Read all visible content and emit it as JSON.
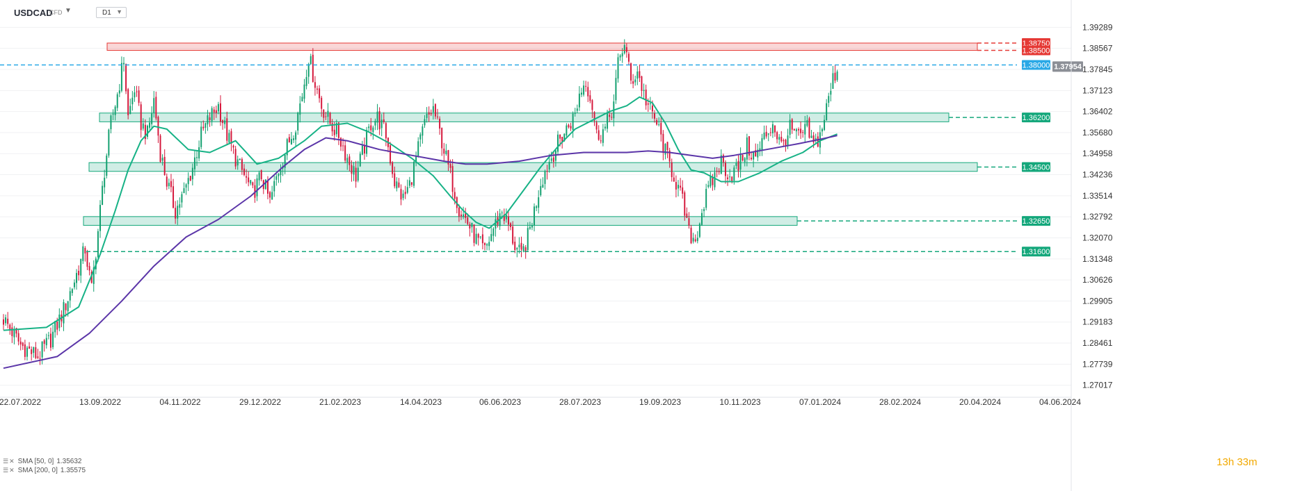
{
  "header": {
    "symbol": "USDCAD",
    "instrument_type": "CFD",
    "timeframe": "D1"
  },
  "chart_data": {
    "type": "candlestick",
    "y_ticks": [
      "1.39289",
      "1.38567",
      "1.37845",
      "1.37123",
      "1.36402",
      "1.35680",
      "1.34958",
      "1.34236",
      "1.33514",
      "1.32792",
      "1.32070",
      "1.31348",
      "1.30626",
      "1.29905",
      "1.29183",
      "1.28461",
      "1.27739",
      "1.27017"
    ],
    "x_ticks": [
      "22.07.2022",
      "13.09.2022",
      "04.11.2022",
      "29.12.2022",
      "21.02.2023",
      "14.04.2023",
      "06.06.2023",
      "28.07.2023",
      "19.09.2023",
      "10.11.2023",
      "07.01.2024",
      "28.02.2024",
      "20.04.2024",
      "04.06.2024"
    ],
    "ylim": [
      1.267,
      1.3975
    ],
    "current_price": "1.37954",
    "levels": [
      {
        "value": "1.38750",
        "color": "#e53935",
        "style": "dashed",
        "zone": true
      },
      {
        "value": "1.38500",
        "color": "#e53935",
        "style": "dashed",
        "zone": true
      },
      {
        "value": "1.38000",
        "color": "#29a8e6",
        "style": "dashed",
        "zone": false
      },
      {
        "value": "1.36200",
        "color": "#14a77b",
        "style": "dashed",
        "zone": true
      },
      {
        "value": "1.34500",
        "color": "#14a77b",
        "style": "dashed",
        "zone": true
      },
      {
        "value": "1.32650",
        "color": "#14a77b",
        "style": "dashed",
        "zone": true
      },
      {
        "value": "1.31600",
        "color": "#14a77b",
        "style": "dashed",
        "zone": false
      }
    ],
    "price_path": [
      [
        0,
        1.293
      ],
      [
        8,
        1.284
      ],
      [
        16,
        1.28
      ],
      [
        22,
        1.286
      ],
      [
        28,
        1.296
      ],
      [
        33,
        1.306
      ],
      [
        38,
        1.317
      ],
      [
        41,
        1.303
      ],
      [
        44,
        1.323
      ],
      [
        47,
        1.344
      ],
      [
        50,
        1.36
      ],
      [
        53,
        1.37
      ],
      [
        56,
        1.382
      ],
      [
        58,
        1.362
      ],
      [
        61,
        1.372
      ],
      [
        64,
        1.36
      ],
      [
        67,
        1.356
      ],
      [
        70,
        1.368
      ],
      [
        73,
        1.35
      ],
      [
        76,
        1.34
      ],
      [
        80,
        1.33
      ],
      [
        84,
        1.336
      ],
      [
        88,
        1.345
      ],
      [
        92,
        1.356
      ],
      [
        96,
        1.362
      ],
      [
        100,
        1.366
      ],
      [
        104,
        1.356
      ],
      [
        108,
        1.348
      ],
      [
        112,
        1.342
      ],
      [
        116,
        1.336
      ],
      [
        120,
        1.342
      ],
      [
        124,
        1.333
      ],
      [
        128,
        1.344
      ],
      [
        132,
        1.352
      ],
      [
        136,
        1.36
      ],
      [
        139,
        1.37
      ],
      [
        142,
        1.383
      ],
      [
        145,
        1.374
      ],
      [
        148,
        1.366
      ],
      [
        152,
        1.36
      ],
      [
        156,
        1.356
      ],
      [
        160,
        1.348
      ],
      [
        164,
        1.342
      ],
      [
        168,
        1.352
      ],
      [
        171,
        1.36
      ],
      [
        174,
        1.362
      ],
      [
        178,
        1.356
      ],
      [
        182,
        1.34
      ],
      [
        186,
        1.334
      ],
      [
        189,
        1.339
      ],
      [
        192,
        1.348
      ],
      [
        196,
        1.36
      ],
      [
        200,
        1.365
      ],
      [
        204,
        1.354
      ],
      [
        208,
        1.342
      ],
      [
        212,
        1.331
      ],
      [
        216,
        1.326
      ],
      [
        220,
        1.32
      ],
      [
        224,
        1.316
      ],
      [
        228,
        1.324
      ],
      [
        232,
        1.33
      ],
      [
        235,
        1.325
      ],
      [
        238,
        1.318
      ],
      [
        241,
        1.314
      ],
      [
        244,
        1.321
      ],
      [
        247,
        1.33
      ],
      [
        250,
        1.34
      ],
      [
        254,
        1.347
      ],
      [
        258,
        1.353
      ],
      [
        262,
        1.358
      ],
      [
        266,
        1.363
      ],
      [
        268,
        1.37
      ],
      [
        271,
        1.375
      ],
      [
        274,
        1.366
      ],
      [
        276,
        1.356
      ],
      [
        280,
        1.358
      ],
      [
        284,
        1.367
      ],
      [
        286,
        1.38
      ],
      [
        289,
        1.388
      ],
      [
        292,
        1.374
      ],
      [
        295,
        1.378
      ],
      [
        298,
        1.37
      ],
      [
        301,
        1.364
      ],
      [
        304,
        1.36
      ],
      [
        308,
        1.35
      ],
      [
        312,
        1.342
      ],
      [
        316,
        1.333
      ],
      [
        319,
        1.322
      ],
      [
        322,
        1.32
      ],
      [
        325,
        1.33
      ],
      [
        328,
        1.337
      ],
      [
        331,
        1.342
      ],
      [
        334,
        1.347
      ],
      [
        338,
        1.342
      ],
      [
        342,
        1.345
      ],
      [
        346,
        1.352
      ],
      [
        350,
        1.348
      ],
      [
        354,
        1.355
      ],
      [
        358,
        1.36
      ],
      [
        362,
        1.352
      ],
      [
        366,
        1.358
      ],
      [
        370,
        1.355
      ],
      [
        374,
        1.358
      ],
      [
        377,
        1.352
      ],
      [
        380,
        1.356
      ],
      [
        383,
        1.365
      ],
      [
        386,
        1.375
      ],
      [
        388,
        1.379
      ]
    ],
    "series": [
      {
        "name": "SMA [50, 0]",
        "value": "1.35632",
        "color": "#17b286",
        "points": [
          [
            0,
            1.289
          ],
          [
            20,
            1.29
          ],
          [
            35,
            1.297
          ],
          [
            45,
            1.315
          ],
          [
            52,
            1.33
          ],
          [
            58,
            1.344
          ],
          [
            64,
            1.354
          ],
          [
            70,
            1.359
          ],
          [
            76,
            1.358
          ],
          [
            86,
            1.351
          ],
          [
            96,
            1.35
          ],
          [
            108,
            1.354
          ],
          [
            118,
            1.346
          ],
          [
            128,
            1.348
          ],
          [
            140,
            1.354
          ],
          [
            148,
            1.359
          ],
          [
            160,
            1.36
          ],
          [
            170,
            1.357
          ],
          [
            180,
            1.353
          ],
          [
            190,
            1.348
          ],
          [
            200,
            1.342
          ],
          [
            208,
            1.335
          ],
          [
            214,
            1.33
          ],
          [
            220,
            1.326
          ],
          [
            226,
            1.324
          ],
          [
            234,
            1.329
          ],
          [
            242,
            1.337
          ],
          [
            250,
            1.345
          ],
          [
            258,
            1.352
          ],
          [
            266,
            1.358
          ],
          [
            274,
            1.361
          ],
          [
            282,
            1.364
          ],
          [
            290,
            1.366
          ],
          [
            296,
            1.369
          ],
          [
            302,
            1.367
          ],
          [
            308,
            1.36
          ],
          [
            314,
            1.351
          ],
          [
            320,
            1.344
          ],
          [
            326,
            1.343
          ],
          [
            334,
            1.34
          ],
          [
            342,
            1.34
          ],
          [
            352,
            1.343
          ],
          [
            362,
            1.347
          ],
          [
            372,
            1.35
          ],
          [
            380,
            1.354
          ],
          [
            388,
            1.3563
          ]
        ]
      },
      {
        "name": "SMA [200, 0]",
        "value": "1.35575",
        "color": "#5b35a8",
        "points": [
          [
            0,
            1.276
          ],
          [
            25,
            1.28
          ],
          [
            40,
            1.288
          ],
          [
            55,
            1.299
          ],
          [
            70,
            1.311
          ],
          [
            85,
            1.321
          ],
          [
            100,
            1.327
          ],
          [
            115,
            1.335
          ],
          [
            130,
            1.345
          ],
          [
            140,
            1.351
          ],
          [
            150,
            1.355
          ],
          [
            160,
            1.354
          ],
          [
            175,
            1.351
          ],
          [
            190,
            1.349
          ],
          [
            205,
            1.347
          ],
          [
            215,
            1.346
          ],
          [
            225,
            1.346
          ],
          [
            240,
            1.347
          ],
          [
            255,
            1.349
          ],
          [
            270,
            1.35
          ],
          [
            290,
            1.35
          ],
          [
            300,
            1.3505
          ],
          [
            310,
            1.35
          ],
          [
            320,
            1.349
          ],
          [
            330,
            1.348
          ],
          [
            340,
            1.349
          ],
          [
            355,
            1.351
          ],
          [
            370,
            1.353
          ],
          [
            380,
            1.3545
          ],
          [
            388,
            1.3558
          ]
        ]
      }
    ]
  },
  "countdown": {
    "hours": "13",
    "h_unit": "h",
    "minutes": "33",
    "m_unit": "m"
  }
}
